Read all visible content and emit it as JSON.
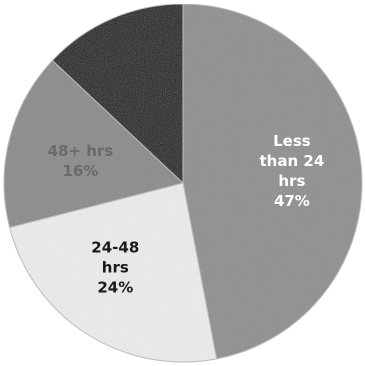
{
  "chart_data": {
    "type": "pie",
    "title": "",
    "slices": [
      {
        "label_lines": [
          "Less",
          "than 24",
          "hrs",
          "47%"
        ],
        "value": 47,
        "color": "#8f8f8f",
        "label_color": "#ffffff"
      },
      {
        "label_lines": [
          "24-48",
          "hrs",
          "24%"
        ],
        "value": 24,
        "color": "#ececec",
        "label_color": "#1a1a1a"
      },
      {
        "label_lines": [
          "48+ hrs",
          "16%"
        ],
        "value": 16,
        "color": "#8a8a8a",
        "label_color": "#6a6a6a"
      },
      {
        "label_lines": [],
        "value": 13,
        "color": "#1c1c1c",
        "label_color": "#ffffff"
      }
    ]
  }
}
